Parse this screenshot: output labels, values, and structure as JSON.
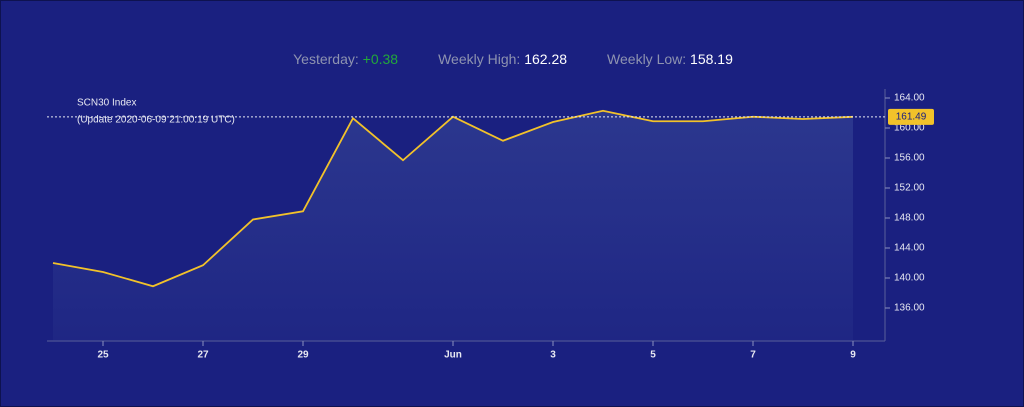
{
  "stats": [
    {
      "label": "Yesterday:",
      "value": "+0.38"
    },
    {
      "label": "Weekly High:",
      "value": "162.28"
    },
    {
      "label": "Weekly Low:",
      "value": "158.19"
    }
  ],
  "chart_data": {
    "type": "area",
    "title": "SCN30 Index",
    "subtitle": "(Update 2020-06-09 21:00:19 UTC)",
    "categories": [
      null,
      "25",
      null,
      "27",
      null,
      "29",
      null,
      null,
      "Jun",
      null,
      "3",
      null,
      "5",
      null,
      "7",
      null,
      "9"
    ],
    "values": [
      142.0,
      140.8,
      138.9,
      141.7,
      147.8,
      148.9,
      161.3,
      155.7,
      161.5,
      158.3,
      160.8,
      162.3,
      160.9,
      160.9,
      161.5,
      161.2,
      161.49
    ],
    "color": "#f2c22a",
    "ylim": [
      131.6,
      165.2
    ],
    "yticks": [
      {
        "value": 136,
        "label": "136.00"
      },
      {
        "value": 140,
        "label": "140.00"
      },
      {
        "value": 144,
        "label": "144.00"
      },
      {
        "value": 148,
        "label": "148.00"
      },
      {
        "value": 152,
        "label": "152.00"
      },
      {
        "value": 156,
        "label": "156.00"
      },
      {
        "value": 160,
        "label": "160.00"
      },
      {
        "value": 164,
        "label": "164.00"
      }
    ],
    "y_axis_side": "right"
  }
}
